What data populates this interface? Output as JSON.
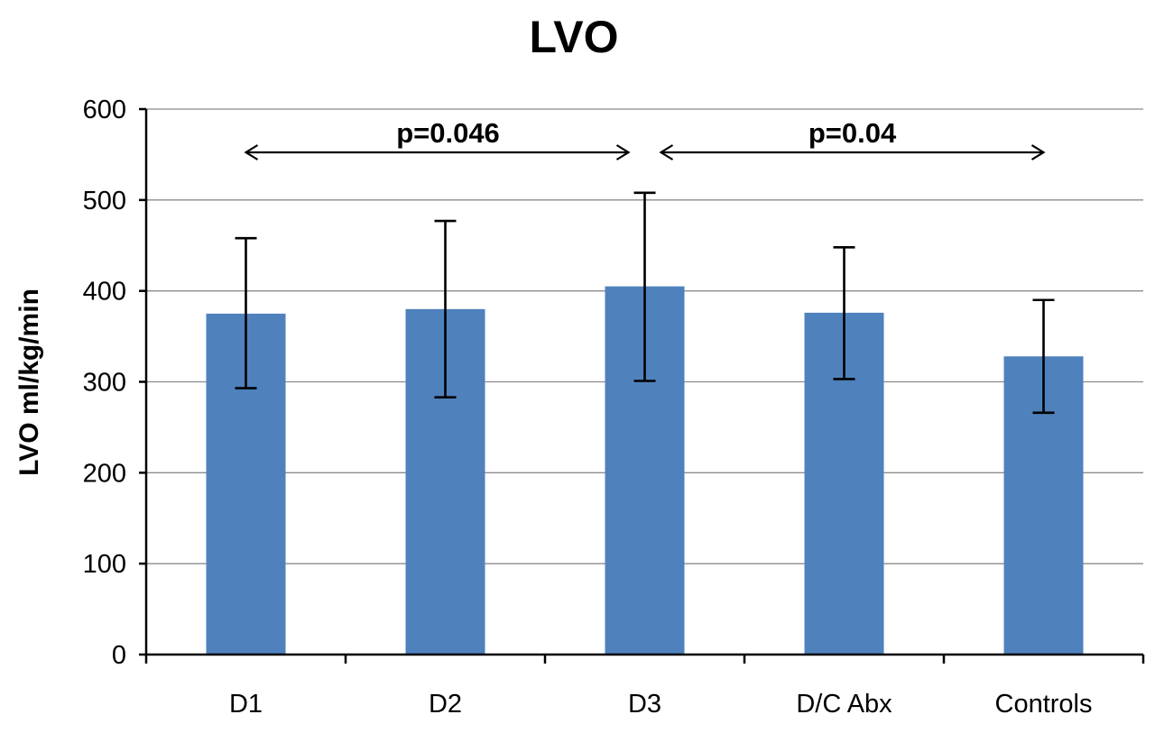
{
  "chart_data": {
    "type": "bar",
    "title": "LVO",
    "xlabel": "",
    "ylabel": "LVO ml/kg/min",
    "categories": [
      "D1",
      "D2",
      "D3",
      "D/C Abx",
      "Controls"
    ],
    "values": [
      375,
      380,
      405,
      376,
      328
    ],
    "error_low": [
      293,
      283,
      301,
      303,
      266
    ],
    "error_high": [
      458,
      477,
      508,
      448,
      390
    ],
    "ylim": [
      0,
      600
    ],
    "yticks": [
      0,
      100,
      200,
      300,
      400,
      500,
      600
    ],
    "grid": true,
    "bar_color": "#4f81bd",
    "annotations": [
      {
        "text": "p=0.046",
        "from": "D1",
        "to": "D3"
      },
      {
        "text": "p=0.04",
        "from": "D3",
        "to": "Controls"
      }
    ]
  }
}
